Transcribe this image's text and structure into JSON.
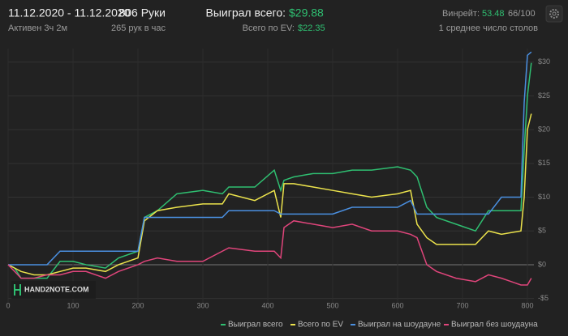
{
  "header": {
    "date_range": "11.12.2020 - 11.12.2020",
    "active": "Активен 3ч 2м",
    "hands": "806 Руки",
    "hands_per_hour": "265 рук в час",
    "won_label": "Выиграл всего:",
    "won_value": "$29.88",
    "ev_label": "Всего по EV:",
    "ev_value": "$22.35",
    "winrate_label": "Винрейт:",
    "winrate_value": "53.48",
    "winrate_rest": "66/100",
    "tables": "1 среднее число столов"
  },
  "watermark": "HAND2NOTE.COM",
  "chart_data": {
    "type": "line",
    "x": [
      0,
      10,
      20,
      40,
      60,
      80,
      100,
      120,
      150,
      170,
      200,
      210,
      230,
      260,
      300,
      330,
      340,
      380,
      410,
      420,
      425,
      440,
      470,
      500,
      530,
      560,
      600,
      620,
      630,
      645,
      660,
      690,
      720,
      740,
      760,
      790,
      795,
      800,
      806
    ],
    "series": [
      {
        "name": "Выиграл всего",
        "color": "#2fbf71",
        "values": [
          0,
          -0.5,
          -2,
          -2,
          -2,
          0.5,
          0.5,
          0,
          -0.5,
          1,
          2,
          7,
          8,
          10.5,
          11,
          10.5,
          11.5,
          11.5,
          14,
          11,
          12.5,
          13,
          13.5,
          13.5,
          14,
          14,
          14.5,
          14,
          13,
          8.5,
          7,
          6,
          5,
          8,
          8,
          8,
          17,
          25,
          29.88
        ]
      },
      {
        "name": "Всего по EV",
        "color": "#ece34c",
        "values": [
          0,
          -0.5,
          -1,
          -1.5,
          -1.5,
          -1,
          -0.5,
          -0.5,
          -1,
          0,
          1,
          6.5,
          8,
          8.5,
          9,
          9,
          10.5,
          9.5,
          11,
          7,
          12,
          12,
          11.5,
          11,
          10.5,
          10,
          10.5,
          11,
          6,
          4,
          3,
          3,
          3,
          5,
          4.5,
          5,
          10,
          20,
          22.35
        ]
      },
      {
        "name": "Выиграл на шоудауне",
        "color": "#4a8fe0",
        "values": [
          0,
          0,
          0,
          0,
          0,
          2,
          2,
          2,
          2,
          2,
          2,
          7,
          7,
          7,
          7,
          7,
          8,
          8,
          8,
          7.5,
          7.5,
          7.5,
          7.5,
          7.5,
          8.5,
          8.5,
          8.5,
          9.5,
          7.5,
          7.5,
          7.5,
          7.5,
          7.5,
          7.5,
          10,
          10,
          24,
          31,
          31.5
        ]
      },
      {
        "name": "Выиграл без шоудауна",
        "color": "#e0457b",
        "values": [
          0,
          -1,
          -2,
          -2,
          -1.5,
          -1.5,
          -1,
          -1,
          -2,
          -1,
          0,
          0.5,
          1,
          0.5,
          0.5,
          2,
          2.5,
          2,
          2,
          1,
          5.5,
          6.5,
          6,
          5.5,
          6,
          5,
          5,
          4.5,
          4,
          0,
          -1,
          -2,
          -2.5,
          -1.5,
          -2,
          -3,
          -3,
          -3,
          -2
        ]
      }
    ],
    "xlim": [
      0,
      810
    ],
    "xticks": [
      0,
      100,
      200,
      300,
      400,
      500,
      600,
      700,
      800
    ],
    "ylim": [
      -6,
      32
    ],
    "yticks": [
      {
        "value": -5,
        "label": "-$5"
      },
      {
        "value": 0,
        "label": "$0"
      },
      {
        "value": 5,
        "label": "$5"
      },
      {
        "value": 10,
        "label": "$10"
      },
      {
        "value": 15,
        "label": "$15"
      },
      {
        "value": 20,
        "label": "$20"
      },
      {
        "value": 25,
        "label": "$25"
      },
      {
        "value": 30,
        "label": "$30"
      }
    ],
    "grid": true
  }
}
